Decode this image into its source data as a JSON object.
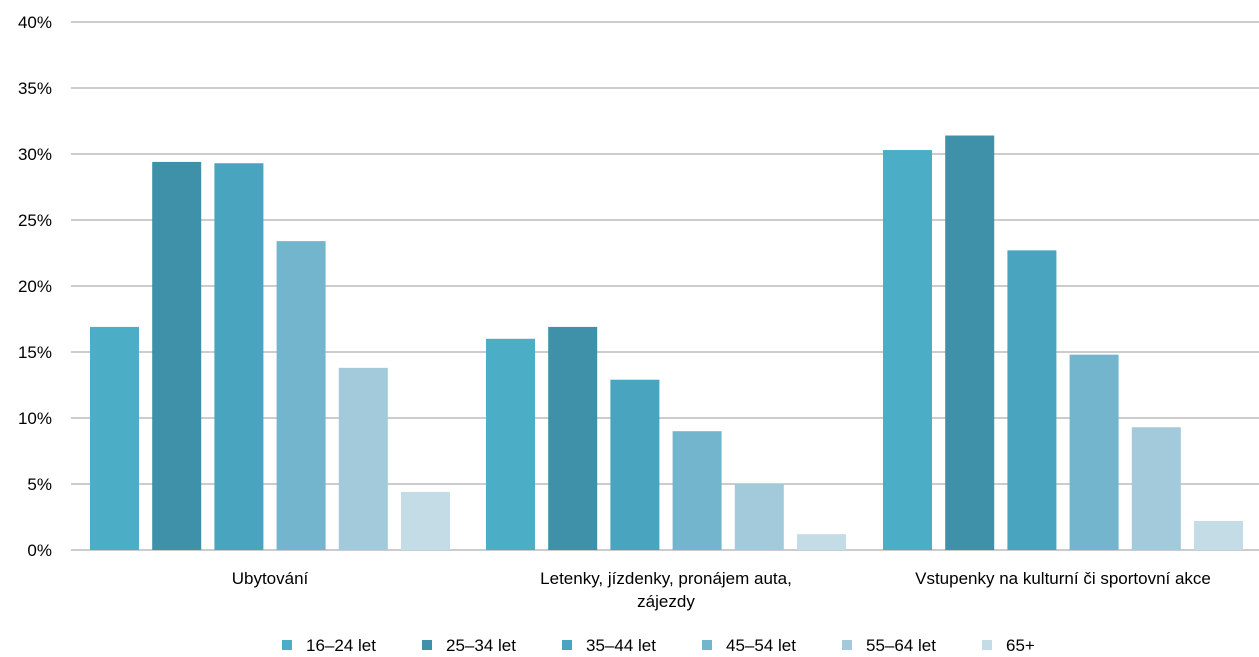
{
  "chart_data": {
    "type": "bar",
    "categories": [
      [
        "Ubytování"
      ],
      [
        "Letenky, jízdenky, pronájem auta,",
        "zájezdy"
      ],
      [
        "Vstupenky na kulturní či sportovní akce"
      ]
    ],
    "series": [
      {
        "name": "16–24 let",
        "color": "#4badc6",
        "values": [
          16.9,
          16.0,
          30.3
        ]
      },
      {
        "name": "25–34 let",
        "color": "#3f91a9",
        "values": [
          29.4,
          16.9,
          31.4
        ]
      },
      {
        "name": "35–44 let",
        "color": "#49a5bf",
        "values": [
          29.3,
          12.9,
          22.7
        ]
      },
      {
        "name": "45–54 let",
        "color": "#72b5cd",
        "values": [
          23.4,
          9.0,
          14.8
        ]
      },
      {
        "name": "55–64 let",
        "color": "#a3cadb",
        "values": [
          13.8,
          5.0,
          9.3
        ]
      },
      {
        "name": "65+",
        "color": "#c3dce6",
        "values": [
          4.4,
          1.2,
          2.2
        ]
      }
    ],
    "yticks": [
      "0%",
      "5%",
      "10%",
      "15%",
      "20%",
      "25%",
      "30%",
      "35%",
      "40%"
    ],
    "ylim": [
      0,
      40
    ],
    "grid": true,
    "legend_position": "bottom",
    "gridline_color": "#999999"
  }
}
